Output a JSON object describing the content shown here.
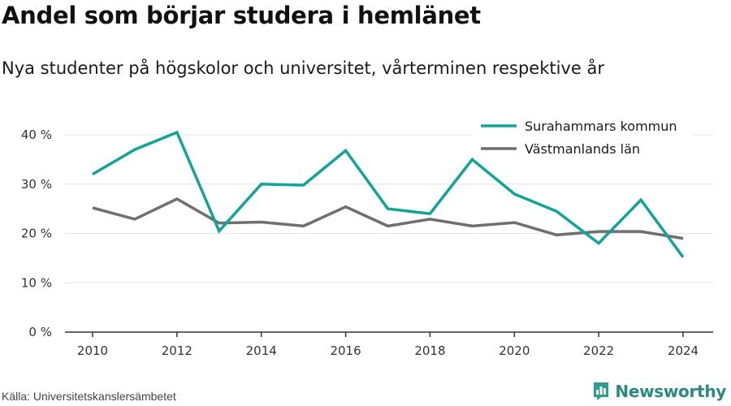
{
  "title": "Andel som börjar studera i hemlänet",
  "subtitle": "Nya studenter på högskolor och universitet, vårterminen respektive år",
  "source": "Källa: Universitetskanslersämbetet",
  "brand": {
    "name": "Newsworthy",
    "icon": "newsworthy-logo-icon",
    "color": "#2a9d8f"
  },
  "chart_data": {
    "type": "line",
    "title": "Andel som börjar studera i hemlänet",
    "subtitle": "Nya studenter på högskolor och universitet, vårterminen respektive år",
    "x": [
      2010,
      2011,
      2012,
      2013,
      2014,
      2015,
      2016,
      2017,
      2018,
      2019,
      2020,
      2021,
      2022,
      2023,
      2024
    ],
    "series": [
      {
        "name": "Surahammars kommun",
        "color": "#11a597",
        "values": [
          32,
          37,
          40.5,
          20.5,
          30,
          29.8,
          36.8,
          25,
          24,
          35,
          28,
          24.5,
          18,
          26.8,
          15.2
        ]
      },
      {
        "name": "Västmanlands län",
        "color": "#6e6e73",
        "values": [
          25.2,
          22.9,
          27,
          22.1,
          22.3,
          21.5,
          25.4,
          21.5,
          22.9,
          21.5,
          22.2,
          19.7,
          20.4,
          20.4,
          19
        ]
      }
    ],
    "xticks": [
      2010,
      2012,
      2014,
      2016,
      2018,
      2020,
      2022,
      2024
    ],
    "xtick_labels": [
      "2010",
      "2012",
      "2014",
      "2016",
      "2018",
      "2020",
      "2022",
      "2024"
    ],
    "yticks": [
      0,
      10,
      20,
      30,
      40
    ],
    "ytick_labels": [
      "0 %",
      "10 %",
      "20 %",
      "30 %",
      "40 %"
    ],
    "xlim": [
      2010,
      2024
    ],
    "ylim": [
      0,
      40
    ],
    "grid": true,
    "legend_position": "top-right",
    "xlabel": "",
    "ylabel": ""
  }
}
